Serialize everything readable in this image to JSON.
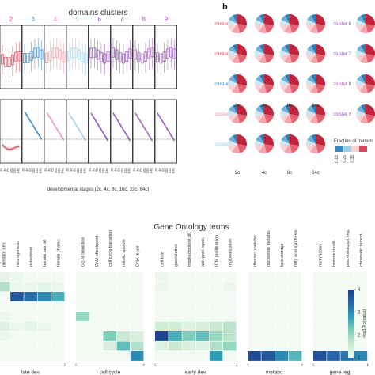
{
  "figure": {
    "panel_b_label": "b",
    "top_title": "domains clusters",
    "top_xlabel": "developmental stages (2c, 4c, 8c, 16c, 32c, 64c)",
    "go_title": "Gene Ontology terms",
    "colorbar_label": "-log10(p(value)",
    "fraction_label": "Fraction of matern",
    "fraction_ticks": [
      "0.15",
      "0.25",
      "0.35"
    ]
  },
  "colors": {
    "cluster": [
      "#d7475b",
      "#d7475b",
      "#3a87c0",
      "#e89aa6",
      "#9fd0e6",
      "#8f4fb5",
      "#8f4fb5",
      "#a65fb8",
      "#9b55b8"
    ],
    "heat_low": "#f3faf3",
    "heat_high": "#1c3f8c"
  },
  "clusters": [
    {
      "num": "2",
      "color": "#d7475b"
    },
    {
      "num": "3",
      "color": "#3a87c0"
    },
    {
      "num": "4",
      "color": "#e89aa6"
    },
    {
      "num": "5",
      "color": "#9fd0e6"
    },
    {
      "num": "6",
      "color": "#8f4fb5"
    },
    {
      "num": "7",
      "color": "#8f4fb5"
    },
    {
      "num": "8",
      "color": "#a65fb8"
    },
    {
      "num": "9",
      "color": "#9b55b8"
    }
  ],
  "stage_ticks": [
    "2c",
    "4c",
    "8c",
    "16c",
    "32c",
    "64c"
  ],
  "pie_panel": {
    "left_clusters": [
      {
        "label": "cluster 1",
        "color": "#d7475b"
      },
      {
        "label": "cluster 2",
        "color": "#d7475b"
      },
      {
        "label": "cluster 3",
        "color": "#3a87c0"
      },
      {
        "label": "cluster 4",
        "color": "#e89aa6"
      },
      {
        "label": "cluster 5",
        "color": "#9fd0e6"
      }
    ],
    "right_clusters": [
      {
        "label": "cluster 6",
        "color": "#8f4fb5"
      },
      {
        "label": "cluster 7",
        "color": "#8f4fb5"
      },
      {
        "label": "cluster 8",
        "color": "#a65fb8"
      },
      {
        "label": "cluster 9",
        "color": "#9b55b8"
      }
    ],
    "columns": [
      "2c",
      "4c",
      "8c",
      "64c"
    ]
  },
  "chart_data": {
    "type": "heatmap",
    "title": "Gene Ontology terms",
    "columns": [
      "prostate dev.",
      "neurogenesis",
      "osteoblast",
      "female sex dif.",
      "female charac.",
      "G2-M transition",
      "DNA checkpoint",
      "cell cycle transition",
      "mitotic spindle",
      "DNA repair",
      "cell fate",
      "gastrulation",
      "trophectoderm dif.",
      "ant. post. spec.",
      "ICM proliferation",
      "regionalization",
      "ribonuc. metabo.",
      "nucleotide metabo.",
      "lipid storage",
      "fatty acid synthesis",
      "methylation",
      "histone modif.",
      "post-transcript. reg.",
      "chromatin remod."
    ],
    "groups": [
      {
        "label": "late dev.",
        "span": [
          0,
          4
        ]
      },
      {
        "label": "cell cycle",
        "span": [
          5,
          9
        ]
      },
      {
        "label": "early dev.",
        "span": [
          10,
          15
        ]
      },
      {
        "label": "metabo.",
        "span": [
          16,
          19
        ]
      },
      {
        "label": "gene reg.",
        "span": [
          20,
          23
        ]
      }
    ],
    "rows": 9,
    "values": [
      [
        1.2,
        1.1,
        1.0,
        1.0,
        1.0,
        1.0,
        1.0,
        1.0,
        1.0,
        1.0,
        1.1,
        1.0,
        1.0,
        1.0,
        1.0,
        1.0,
        1.0,
        1.0,
        1.0,
        1.0,
        1.0,
        1.0,
        1.0,
        1.0
      ],
      [
        1.8,
        1.1,
        1.1,
        1.2,
        1.1,
        1.0,
        1.0,
        1.0,
        1.0,
        1.0,
        1.1,
        1.0,
        1.0,
        1.0,
        1.0,
        1.1,
        1.0,
        1.0,
        1.0,
        1.0,
        1.0,
        1.0,
        1.0,
        1.0
      ],
      [
        1.0,
        3.6,
        3.3,
        3.0,
        2.6,
        1.0,
        1.0,
        1.0,
        1.0,
        1.0,
        1.0,
        1.0,
        1.0,
        1.0,
        1.0,
        1.0,
        1.0,
        1.0,
        1.0,
        1.0,
        1.0,
        1.0,
        1.0,
        1.0
      ],
      [
        1.0,
        1.0,
        1.0,
        1.0,
        1.0,
        1.0,
        1.0,
        1.0,
        1.0,
        1.0,
        1.0,
        1.0,
        1.0,
        1.0,
        1.0,
        1.0,
        1.0,
        1.0,
        1.0,
        1.0,
        1.0,
        1.0,
        1.0,
        1.0
      ],
      [
        1.1,
        1.0,
        1.0,
        1.0,
        1.0,
        2.0,
        1.0,
        1.0,
        1.0,
        1.0,
        1.0,
        1.0,
        1.0,
        1.0,
        1.0,
        1.0,
        1.0,
        1.0,
        1.0,
        1.0,
        1.0,
        1.0,
        1.0,
        1.0
      ],
      [
        1.3,
        1.1,
        1.2,
        1.1,
        1.0,
        1.0,
        1.0,
        1.0,
        1.0,
        1.0,
        1.5,
        1.5,
        1.3,
        1.4,
        1.6,
        1.7,
        1.0,
        1.0,
        1.0,
        1.0,
        1.0,
        1.0,
        1.0,
        1.0
      ],
      [
        1.1,
        1.0,
        1.0,
        1.0,
        1.0,
        1.0,
        1.0,
        2.2,
        1.6,
        1.4,
        3.9,
        2.6,
        2.2,
        2.4,
        2.0,
        1.7,
        1.0,
        1.0,
        1.0,
        1.0,
        1.0,
        1.0,
        1.0,
        1.0
      ],
      [
        1.0,
        1.0,
        1.0,
        1.0,
        1.0,
        1.0,
        1.0,
        1.4,
        2.4,
        1.8,
        1.3,
        1.6,
        1.4,
        1.3,
        1.8,
        2.0,
        1.0,
        1.0,
        1.0,
        1.0,
        1.0,
        1.0,
        1.0,
        1.0
      ],
      [
        1.0,
        1.0,
        1.0,
        1.0,
        1.0,
        1.0,
        1.0,
        1.0,
        1.0,
        3.0,
        1.0,
        1.0,
        1.0,
        1.0,
        2.8,
        1.0,
        3.8,
        3.6,
        3.0,
        2.5,
        3.7,
        3.4,
        3.2,
        3.0
      ]
    ],
    "colorbar": {
      "label": "-log10(p(value)",
      "ticks": [
        1,
        2,
        3,
        4
      ],
      "range": [
        1,
        4
      ]
    }
  }
}
